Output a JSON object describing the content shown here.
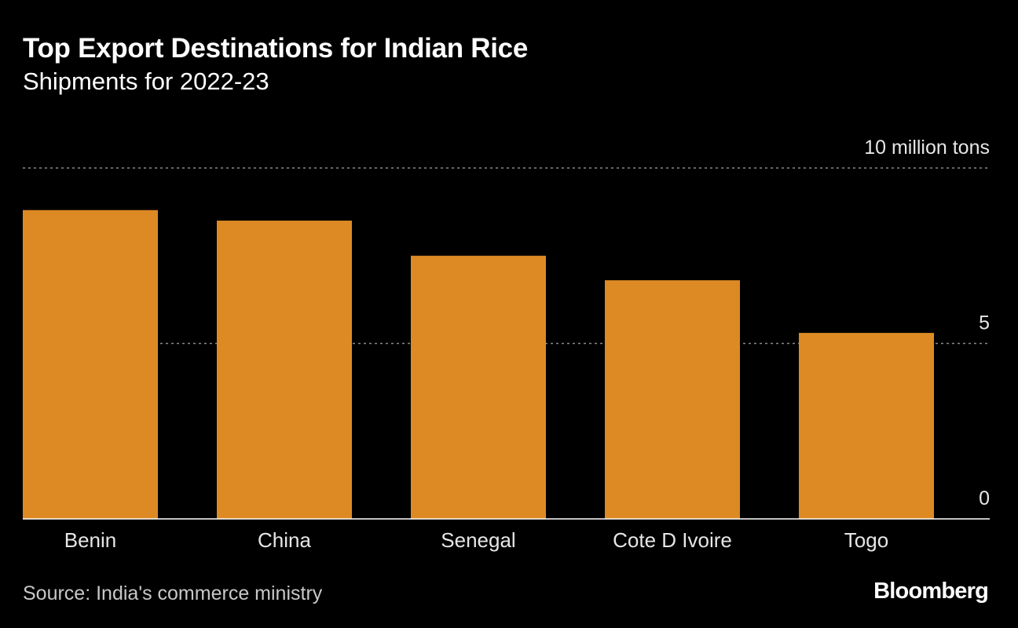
{
  "header": {
    "title": "Top Export Destinations for Indian Rice",
    "subtitle": "Shipments for 2022-23"
  },
  "chart_data": {
    "type": "bar",
    "title": "Top Export Destinations for Indian Rice",
    "subtitle": "Shipments for 2022-23",
    "categories": [
      "Benin",
      "China",
      "Senegal",
      "Cote D Ivoire",
      "Togo"
    ],
    "values": [
      8.8,
      8.5,
      7.5,
      6.8,
      5.3
    ],
    "ylabel": "million tons",
    "ylim": [
      0,
      10
    ],
    "yticks": [
      0,
      5,
      10
    ],
    "ytick_labels": [
      "0",
      "5",
      "10 million tons"
    ],
    "grid": true,
    "bar_color": "#dd8a24",
    "unit_label": "10 million tons"
  },
  "footer": {
    "source": "Source: India's commerce ministry",
    "brand": "Bloomberg"
  }
}
